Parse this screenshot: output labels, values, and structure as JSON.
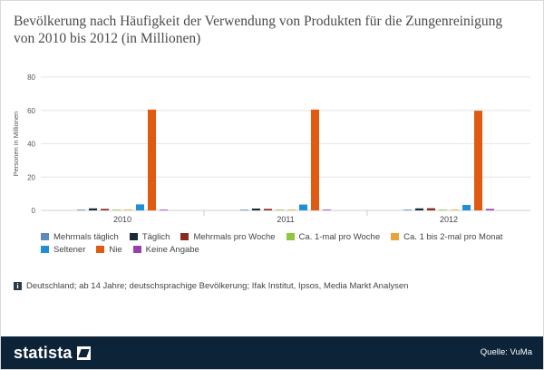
{
  "title": "Bevölkerung nach Häufigkeit der Verwendung von Produkten für die Zungenreinigung von 2010 bis 2012 (in Millionen)",
  "note": "Deutschland; ab 14 Jahre; deutschsprachige Bevölkerung; Ifak Institut, Ipsos, Media Markt Analysen",
  "brand": "statista",
  "source": "Quelle: VuMa",
  "chart_data": {
    "type": "bar",
    "categories": [
      "2010",
      "2011",
      "2012"
    ],
    "ylabel": "Personen in Millionen",
    "ylim": [
      0,
      80
    ],
    "yticks": [
      0,
      20,
      40,
      60,
      80
    ],
    "grid": true,
    "legend_position": "bottom",
    "series": [
      {
        "name": "Mehrmals täglich",
        "color": "#5b8cb8",
        "values": [
          0.3,
          0.3,
          0.3
        ]
      },
      {
        "name": "Täglich",
        "color": "#1c2b3a",
        "values": [
          1.2,
          1.1,
          1.2
        ]
      },
      {
        "name": "Mehrmals pro Woche",
        "color": "#8c2a1d",
        "values": [
          0.9,
          0.9,
          1.3
        ]
      },
      {
        "name": "Ca. 1-mal pro Woche",
        "color": "#8dc63f",
        "values": [
          0.3,
          0.3,
          0.3
        ]
      },
      {
        "name": "Ca. 1 bis 2-mal pro Monat",
        "color": "#e8a33a",
        "values": [
          0.3,
          0.3,
          0.3
        ]
      },
      {
        "name": "Seltener",
        "color": "#1f8fd6",
        "values": [
          3.6,
          3.5,
          3.3
        ]
      },
      {
        "name": "Nie",
        "color": "#e05a12",
        "values": [
          60.5,
          60.5,
          59.8
        ]
      },
      {
        "name": "Keine Angabe",
        "color": "#9b3fb0",
        "values": [
          0.3,
          0.3,
          0.9
        ]
      }
    ]
  }
}
